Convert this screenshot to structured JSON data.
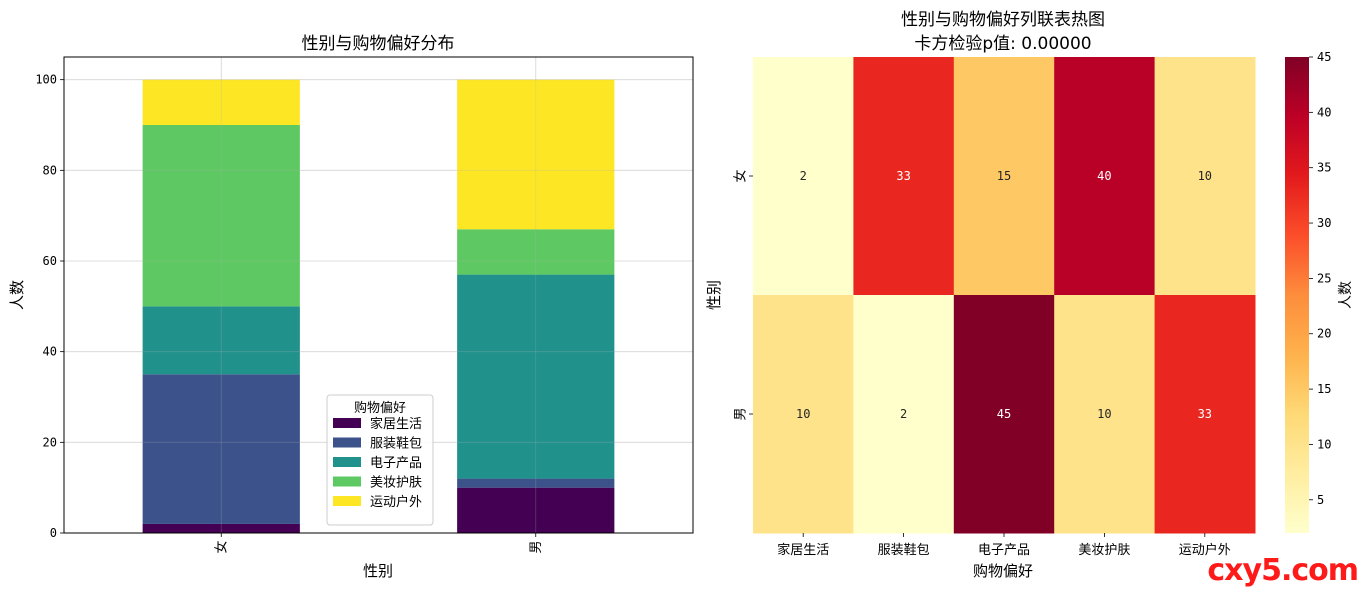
{
  "chart_data": [
    {
      "type": "bar",
      "stacked": true,
      "title": "性别与购物偏好分布",
      "xlabel": "性别",
      "ylabel": "人数",
      "categories": [
        "女",
        "男"
      ],
      "ylim": [
        0,
        105
      ],
      "yticks": [
        0,
        20,
        40,
        60,
        80,
        100
      ],
      "grid": true,
      "legend": {
        "title": "购物偏好",
        "placement": "lower-center"
      },
      "series": [
        {
          "name": "家居生活",
          "color": "#440154",
          "values": [
            2,
            10
          ]
        },
        {
          "name": "服装鞋包",
          "color": "#3b528b",
          "values": [
            33,
            2
          ]
        },
        {
          "name": "电子产品",
          "color": "#21918c",
          "values": [
            15,
            45
          ]
        },
        {
          "name": "美妆护肤",
          "color": "#5ec962",
          "values": [
            40,
            10
          ]
        },
        {
          "name": "运动户外",
          "color": "#fde725",
          "values": [
            10,
            33
          ]
        }
      ]
    },
    {
      "type": "heatmap",
      "title": "性别与购物偏好列联表热图",
      "subtitle": "卡方检验p值: 0.00000",
      "xlabel": "购物偏好",
      "ylabel": "性别",
      "x": [
        "家居生活",
        "服装鞋包",
        "电子产品",
        "美妆护肤",
        "运动户外"
      ],
      "y": [
        "女",
        "男"
      ],
      "values": [
        [
          2,
          33,
          15,
          40,
          10
        ],
        [
          10,
          2,
          45,
          10,
          33
        ]
      ],
      "colormap": "YlOrRd",
      "colorbar": {
        "label": "人数",
        "range": [
          2,
          45
        ],
        "ticks": [
          5,
          10,
          15,
          20,
          25,
          30,
          35,
          40,
          45
        ]
      }
    }
  ],
  "watermark": "cxy5.com"
}
